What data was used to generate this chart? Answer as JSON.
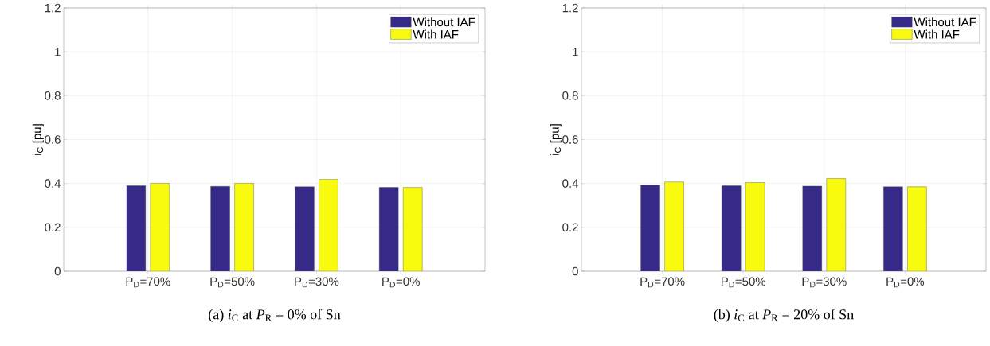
{
  "chart_data": [
    {
      "type": "bar",
      "title": "(a) *i*$_{C}$ at *P*$_{R}$ = 0% of Sn",
      "ylabel": "i$_{C}$ [pu]",
      "categories": [
        "P$_{D}$=70%",
        "P$_{D}$=50%",
        "P$_{D}$=30%",
        "P$_{D}$=0%"
      ],
      "series": [
        {
          "name": "Without IAF",
          "color": "#352a87",
          "values": [
            0.39,
            0.387,
            0.385,
            0.382
          ]
        },
        {
          "name": "With IAF",
          "color": "#f9fb0e",
          "values": [
            0.401,
            0.401,
            0.419,
            0.382
          ]
        }
      ],
      "ylim": [
        0,
        1.2
      ],
      "yticks": [
        0,
        0.2,
        0.4,
        0.6,
        0.8,
        1,
        1.2
      ],
      "grid": true,
      "legend": "top right"
    },
    {
      "type": "bar",
      "title": "(b) *i*$_{C}$ at *P*$_{R}$ = 20% of Sn",
      "ylabel": "i$_{C}$ [pu]",
      "categories": [
        "P$_{D}$=70%",
        "P$_{D}$=50%",
        "P$_{D}$=30%",
        "P$_{D}$=0%"
      ],
      "series": [
        {
          "name": "Without IAF",
          "color": "#352a87",
          "values": [
            0.393,
            0.39,
            0.388,
            0.385
          ]
        },
        {
          "name": "With IAF",
          "color": "#f9fb0e",
          "values": [
            0.407,
            0.404,
            0.422,
            0.385
          ]
        }
      ],
      "ylim": [
        0,
        1.2
      ],
      "yticks": [
        0,
        0.2,
        0.4,
        0.6,
        0.8,
        1,
        1.2
      ],
      "grid": true,
      "legend": "top right"
    }
  ]
}
